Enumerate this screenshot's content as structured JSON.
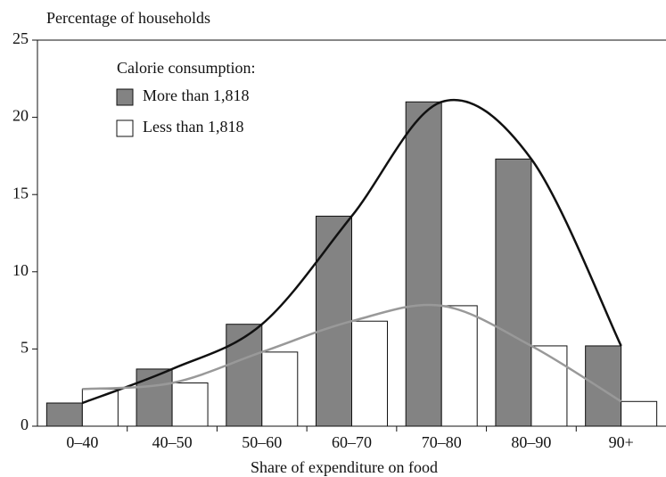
{
  "chart_data": {
    "type": "bar",
    "y_label": "Percentage of households",
    "x_label": "Share of expenditure on food",
    "legend_title": "Calorie consumption:",
    "categories": [
      "0–40",
      "40–50",
      "50–60",
      "60–70",
      "70–80",
      "80–90",
      "90+"
    ],
    "series": [
      {
        "name": "More than 1,818",
        "color": "#838383",
        "trend_color": "#111111",
        "values": [
          1.5,
          3.7,
          6.6,
          13.6,
          21.0,
          17.3,
          5.2
        ]
      },
      {
        "name": "Less than 1,818",
        "color": "#ffffff",
        "trend_color": "#999999",
        "values": [
          2.4,
          2.8,
          4.8,
          6.8,
          7.8,
          5.2,
          1.6
        ]
      }
    ],
    "ylim": [
      0,
      25
    ],
    "yticks": [
      0,
      5,
      10,
      15,
      20,
      25
    ]
  }
}
